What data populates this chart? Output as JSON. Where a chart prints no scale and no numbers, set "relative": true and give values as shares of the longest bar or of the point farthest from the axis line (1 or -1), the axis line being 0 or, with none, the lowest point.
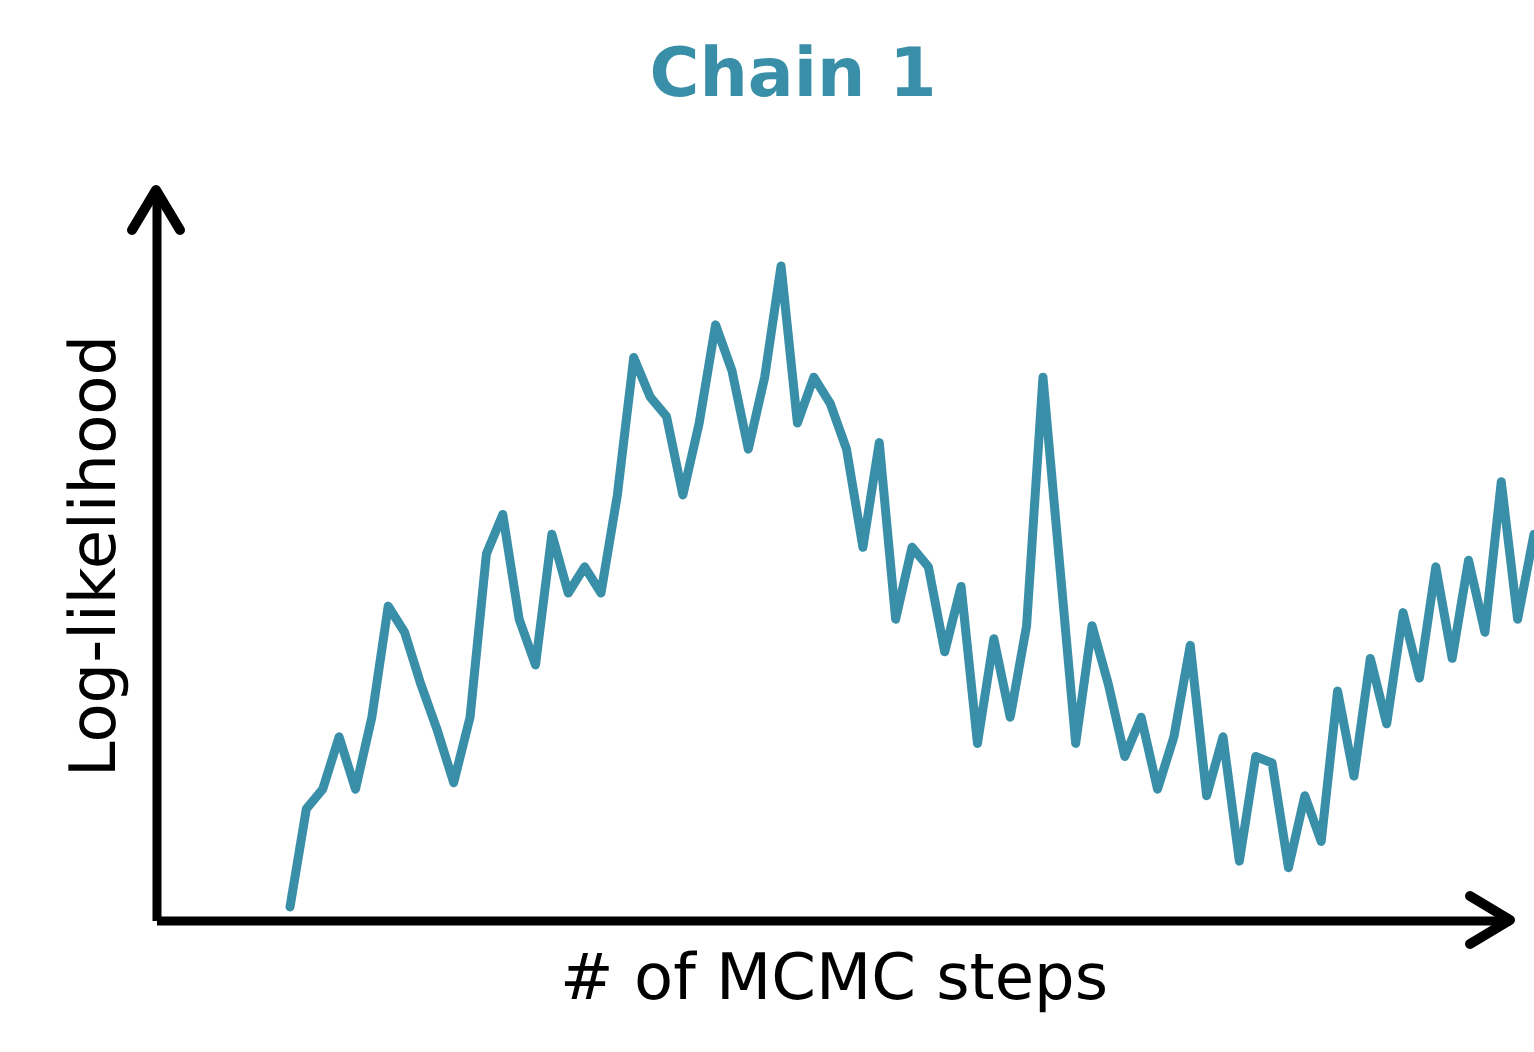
{
  "chart_data": {
    "type": "line",
    "title": "Chain 1",
    "xlabel": "# of MCMC steps",
    "ylabel": "Log-likelihood",
    "relative": true,
    "grid": false,
    "marker": "none",
    "line_style": "solid",
    "categories": [
      null,
      null,
      null,
      null,
      null,
      null,
      null,
      null,
      null,
      null,
      null,
      null,
      null,
      null,
      null,
      null,
      null,
      null,
      null,
      null,
      null,
      null,
      null,
      null,
      null,
      null,
      null,
      null,
      null,
      null,
      null,
      null,
      null,
      null,
      null,
      null,
      null,
      null,
      null,
      null,
      null,
      null,
      null,
      null,
      null,
      null,
      null,
      null,
      null,
      null,
      null,
      null,
      null,
      null,
      null,
      null,
      null,
      null,
      null,
      null,
      null,
      null,
      null,
      null,
      null,
      null,
      null,
      null,
      null,
      null,
      null,
      null,
      null,
      null,
      null,
      null,
      null
    ],
    "series": [
      {
        "color": "#3a8fa8",
        "values": [
          0.02,
          0.17,
          0.2,
          0.28,
          0.2,
          0.31,
          0.48,
          0.44,
          0.36,
          0.29,
          0.21,
          0.31,
          0.56,
          0.62,
          0.46,
          0.39,
          0.59,
          0.5,
          0.54,
          0.5,
          0.65,
          0.86,
          0.8,
          0.77,
          0.65,
          0.76,
          0.91,
          0.84,
          0.72,
          0.83,
          1,
          0.76,
          0.83,
          0.79,
          0.72,
          0.57,
          0.73,
          0.46,
          0.57,
          0.54,
          0.41,
          0.51,
          0.27,
          0.43,
          0.31,
          0.45,
          0.83,
          0.55,
          0.27,
          0.45,
          0.36,
          0.25,
          0.31,
          0.2,
          0.28,
          0.42,
          0.19,
          0.28,
          0.09,
          0.25,
          0.24,
          0.08,
          0.19,
          0.12,
          0.35,
          0.22,
          0.4,
          0.3,
          0.47,
          0.37,
          0.54,
          0.4,
          0.55,
          0.44,
          0.67,
          0.46,
          0.59
        ]
      }
    ]
  }
}
